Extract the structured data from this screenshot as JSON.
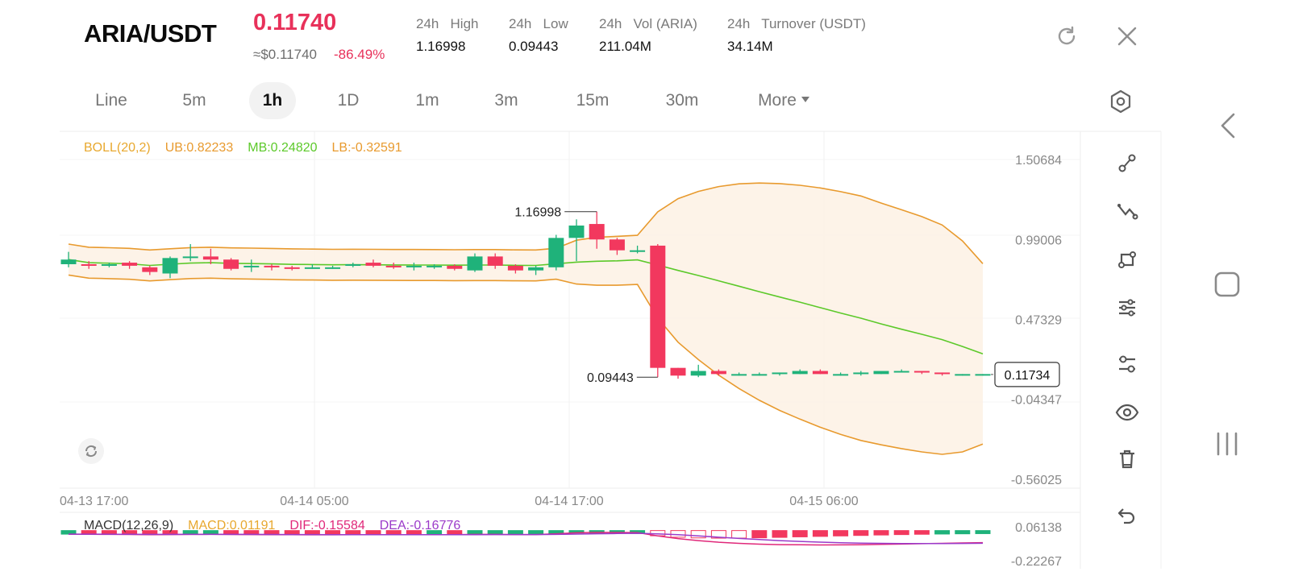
{
  "header": {
    "pair": "ARIA/USDT",
    "price": "0.11740",
    "fiat_price": "≈$0.11740",
    "change": "-86.49%",
    "stats": [
      {
        "label": "24h   High",
        "value": "1.16998"
      },
      {
        "label": "24h   Low",
        "value": "0.09443"
      },
      {
        "label": "24h   Vol (ARIA)",
        "value": "211.04M"
      },
      {
        "label": "24h   Turnover (USDT)",
        "value": "34.14M"
      }
    ],
    "icons": [
      "refresh-icon",
      "close-icon"
    ]
  },
  "tabs": [
    {
      "label": "Line",
      "active": false
    },
    {
      "label": "5m",
      "active": false
    },
    {
      "label": "1h",
      "active": true
    },
    {
      "label": "1D",
      "active": false
    },
    {
      "label": "1m",
      "active": false
    },
    {
      "label": "3m",
      "active": false
    },
    {
      "label": "15m",
      "active": false
    },
    {
      "label": "30m",
      "active": false
    },
    {
      "label": "More",
      "active": false
    }
  ],
  "chart_data": {
    "type": "candlestick",
    "indicator": {
      "name": "BOLL(20,2)",
      "ub": "UB:0.82233",
      "mb": "MB:0.24820",
      "lb": "LB:-0.32591",
      "colors": {
        "ub": "#e89a2e",
        "mb": "#5cc92a",
        "lb": "#e89a2e",
        "name": "#e8a82e"
      }
    },
    "y_ticks": [
      "1.50684",
      "0.99006",
      "0.47329",
      "-0.04347",
      "-0.56025"
    ],
    "x_ticks": [
      "04-13 17:00",
      "04-14 05:00",
      "04-14 17:00",
      "04-15 06:00"
    ],
    "ylim": [
      -0.56025,
      1.50684
    ],
    "high_label": "1.16998",
    "low_label": "0.09443",
    "last_price_label": "0.11734",
    "up_color": "#1fb27a",
    "down_color": "#f2385e",
    "candles": [
      [
        0.83,
        0.86,
        0.81,
        0.91
      ],
      [
        0.83,
        0.82,
        0.8,
        0.85
      ],
      [
        0.82,
        0.83,
        0.81,
        0.84
      ],
      [
        0.84,
        0.82,
        0.8,
        0.85
      ],
      [
        0.81,
        0.78,
        0.76,
        0.82
      ],
      [
        0.77,
        0.87,
        0.74,
        0.88
      ],
      [
        0.87,
        0.88,
        0.85,
        0.96
      ],
      [
        0.88,
        0.86,
        0.83,
        0.93
      ],
      [
        0.86,
        0.8,
        0.79,
        0.87
      ],
      [
        0.81,
        0.82,
        0.78,
        0.86
      ],
      [
        0.82,
        0.81,
        0.79,
        0.83
      ],
      [
        0.81,
        0.8,
        0.79,
        0.82
      ],
      [
        0.81,
        0.81,
        0.8,
        0.83
      ],
      [
        0.81,
        0.81,
        0.8,
        0.82
      ],
      [
        0.82,
        0.83,
        0.81,
        0.84
      ],
      [
        0.84,
        0.82,
        0.81,
        0.86
      ],
      [
        0.82,
        0.81,
        0.8,
        0.84
      ],
      [
        0.81,
        0.82,
        0.79,
        0.84
      ],
      [
        0.82,
        0.82,
        0.8,
        0.83
      ],
      [
        0.82,
        0.8,
        0.79,
        0.83
      ],
      [
        0.79,
        0.88,
        0.78,
        0.9
      ],
      [
        0.88,
        0.82,
        0.8,
        0.9
      ],
      [
        0.82,
        0.79,
        0.77,
        0.83
      ],
      [
        0.79,
        0.81,
        0.76,
        0.82
      ],
      [
        0.81,
        1.0,
        0.79,
        1.02
      ],
      [
        1.0,
        1.08,
        0.85,
        1.12
      ],
      [
        1.09,
        0.99,
        0.93,
        1.17
      ],
      [
        0.99,
        0.92,
        0.89,
        1.0
      ],
      [
        0.92,
        0.92,
        0.9,
        0.95
      ],
      [
        0.95,
        0.16,
        0.1,
        0.96
      ],
      [
        0.16,
        0.11,
        0.09,
        0.16
      ],
      [
        0.11,
        0.14,
        0.1,
        0.18
      ],
      [
        0.14,
        0.12,
        0.11,
        0.15
      ],
      [
        0.12,
        0.12,
        0.11,
        0.13
      ],
      [
        0.12,
        0.12,
        0.11,
        0.13
      ],
      [
        0.12,
        0.13,
        0.11,
        0.13
      ],
      [
        0.12,
        0.14,
        0.12,
        0.15
      ],
      [
        0.14,
        0.12,
        0.12,
        0.15
      ],
      [
        0.12,
        0.12,
        0.11,
        0.13
      ],
      [
        0.12,
        0.13,
        0.11,
        0.14
      ],
      [
        0.12,
        0.14,
        0.12,
        0.14
      ],
      [
        0.14,
        0.14,
        0.13,
        0.15
      ],
      [
        0.14,
        0.13,
        0.12,
        0.14
      ],
      [
        0.13,
        0.12,
        0.11,
        0.13
      ],
      [
        0.12,
        0.12,
        0.11,
        0.12
      ],
      [
        0.12,
        0.12,
        0.11,
        0.12
      ]
    ],
    "macd": {
      "label": "MACD(12,26,9)",
      "macd_label": "MACD:0.01191",
      "dif_label": "DIF:-0.15584",
      "dea_label": "DEA:-0.16776",
      "y_ticks": [
        "0.06138",
        "-0.22267"
      ],
      "colors": {
        "label": "#333333",
        "macd": "#e8a82e",
        "dif": "#e0287a",
        "dea": "#9b3ac9"
      }
    }
  },
  "toolbar": {
    "icons": [
      "trendline-icon",
      "polyline-icon",
      "shape-icon",
      "sliders-icon",
      "indicator-settings-icon",
      "eye-icon",
      "trash-icon",
      "undo-icon"
    ]
  },
  "system_nav": [
    "back-chevron-icon",
    "home-square-icon",
    "recents-icon"
  ]
}
